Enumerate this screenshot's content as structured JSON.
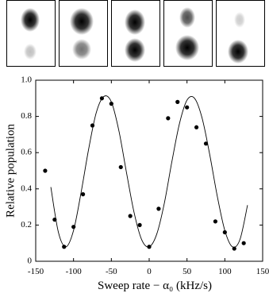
{
  "chart_data": {
    "type": "scatter",
    "xlabel": "Sweep rate − α₀ (kHz/s)",
    "ylabel": "Relative population",
    "xlim": [
      -150,
      150
    ],
    "xticks": [
      -150,
      -100,
      -50,
      0,
      50,
      100,
      150
    ],
    "ylim": [
      0,
      1
    ],
    "yticks": [
      0,
      0.2,
      0.4,
      0.6,
      0.8,
      {
        "value": 1,
        "label": "1.0"
      }
    ],
    "series": [
      {
        "style": "markers",
        "color": "#000000",
        "x": [
          -137.5,
          -125,
          -112.5,
          -100,
          -87.5,
          -75,
          -62.5,
          -50,
          -37.5,
          -25,
          -12.5,
          0,
          12.5,
          25,
          37.5,
          50,
          62.5,
          75,
          87.5,
          100,
          112.5,
          125
        ],
        "values": [
          0.5,
          0.23,
          0.08,
          0.19,
          0.37,
          0.75,
          0.9,
          0.87,
          0.52,
          0.25,
          0.2,
          0.08,
          0.29,
          0.79,
          0.88,
          0.85,
          0.74,
          0.65,
          0.22,
          0.16,
          0.07,
          0.1
        ]
      },
      {
        "style": "line",
        "color": "#000000",
        "x": [
          -130,
          -120,
          -110,
          -100,
          -90,
          -80,
          -70,
          -60,
          -50,
          -40,
          -30,
          -20,
          -10,
          0,
          10,
          20,
          30,
          40,
          50,
          60,
          70,
          80,
          90,
          100,
          110,
          120,
          130
        ],
        "values": [
          0.41,
          0.16,
          0.08,
          0.17,
          0.38,
          0.62,
          0.82,
          0.91,
          0.88,
          0.72,
          0.49,
          0.27,
          0.12,
          0.08,
          0.15,
          0.32,
          0.55,
          0.76,
          0.89,
          0.9,
          0.79,
          0.59,
          0.36,
          0.17,
          0.08,
          0.12,
          0.31
        ]
      }
    ]
  }
}
